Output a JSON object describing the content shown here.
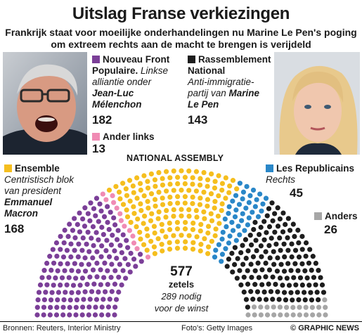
{
  "title": "Uitslag Franse verkiezingen",
  "subtitle_line1": "Frankrijk staat voor moeilijke onderhandelingen nu Marine Le Pen's poging",
  "subtitle_line2": "om extreem rechts aan de macht te brengen is verijdeld",
  "chamber_label": "NATIONAL ASSEMBLY",
  "total_seats": "577",
  "seats_unit": "zetels",
  "majority_line1": "289 nodig",
  "majority_line2": "voor de winst",
  "footer": {
    "sources": "Bronnen: Reuters, Interior Ministry",
    "photos": "Foto's: Getty Images",
    "credit": "© GRAPHIC NEWS"
  },
  "legend": {
    "nfp": {
      "head1": "Nouveau Front",
      "head2": "Populaire.",
      "desc1": "Linkse",
      "desc2": "alliantie onder",
      "leader1": "Jean-Luc",
      "leader2": "Mélenchon",
      "seats": "182"
    },
    "rn": {
      "head1": "Rassemblement",
      "head2": "National",
      "desc1": "Anti-immigratie-",
      "desc2": "partij van",
      "leader1": "Marine",
      "leader2": "Le Pen",
      "seats": "143"
    },
    "other_left": {
      "head": "Ander links",
      "seats": "13"
    },
    "ensemble": {
      "head": "Ensemble",
      "desc1": "Centristisch blok",
      "desc2": "van president",
      "leader1": "Emmanuel",
      "leader2": "Macron",
      "seats": "168"
    },
    "lr": {
      "head": "Les Republicains",
      "desc": "Rechts",
      "seats": "45"
    },
    "others": {
      "head": "Anders",
      "seats": "26"
    }
  },
  "chart_data": {
    "type": "parliament",
    "total": 577,
    "majority": 289,
    "series": [
      {
        "name": "Nouveau Front Populaire",
        "value": 182,
        "color": "#7b3f98"
      },
      {
        "name": "Ander links",
        "value": 13,
        "color": "#f08bb4"
      },
      {
        "name": "Ensemble",
        "value": 168,
        "color": "#f5be1e"
      },
      {
        "name": "Les Republicains",
        "value": 45,
        "color": "#2a87c8"
      },
      {
        "name": "Rassemblement National",
        "value": 143,
        "color": "#1d1d1d"
      },
      {
        "name": "Anders",
        "value": 26,
        "color": "#a6a6a6"
      }
    ]
  }
}
